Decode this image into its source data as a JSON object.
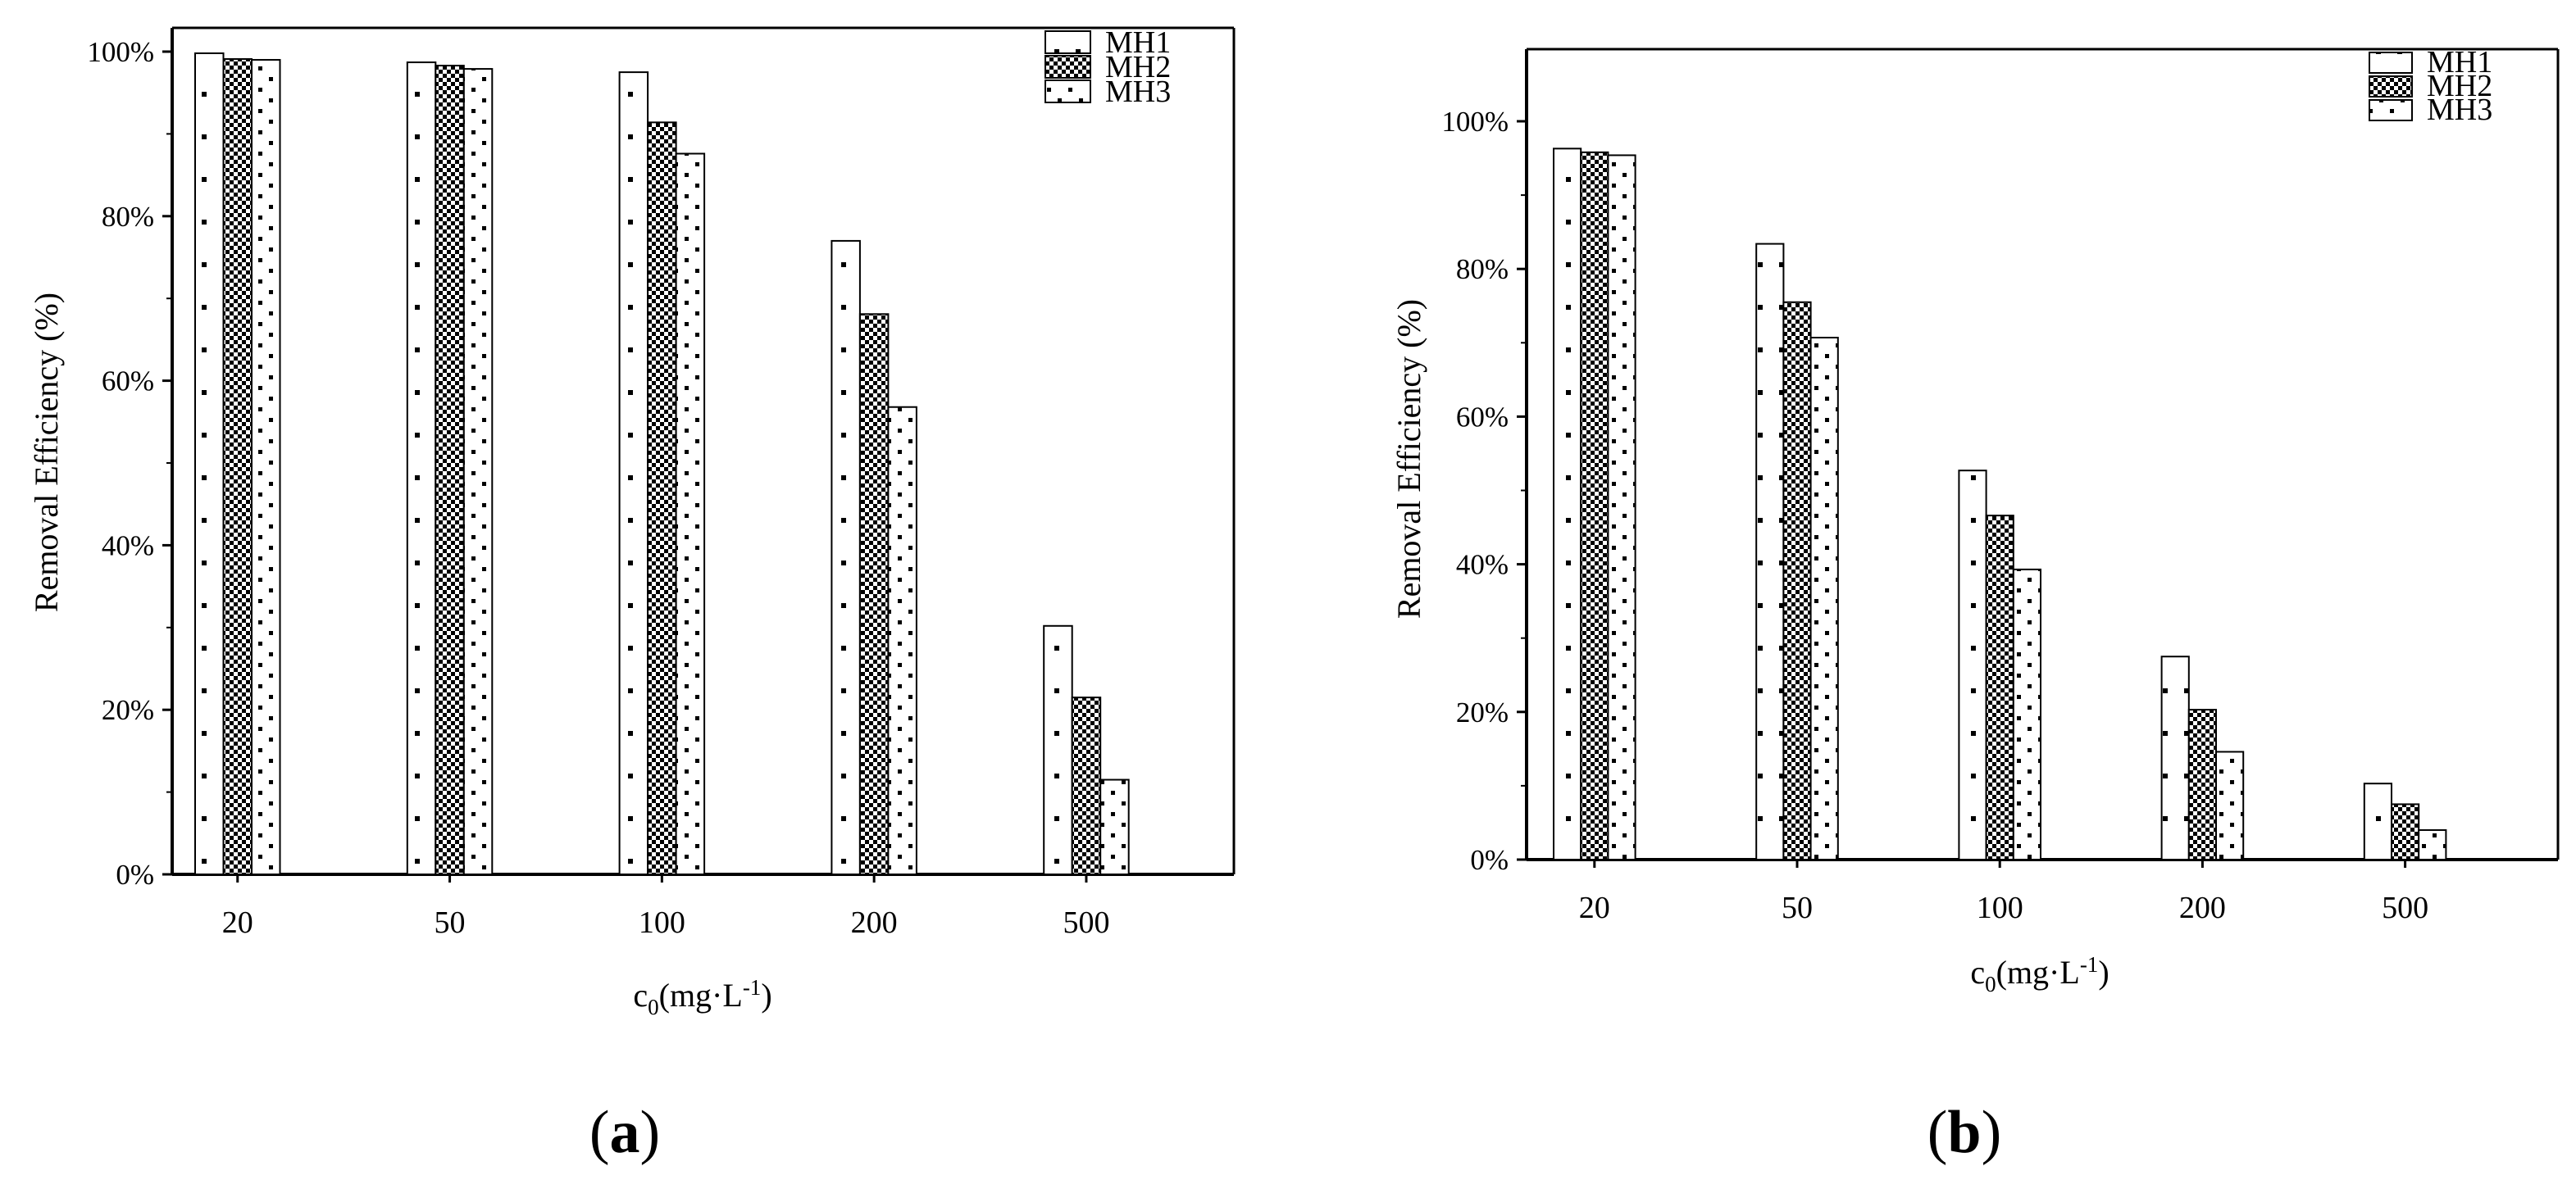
{
  "panels": [
    {
      "label_open": "(",
      "label_letter": "a",
      "label_close": ")"
    },
    {
      "label_open": "(",
      "label_letter": "b",
      "label_close": ")"
    }
  ],
  "colors": {
    "axis": "#000000",
    "bar_fill": "#ffffff",
    "pattern": "#000000"
  },
  "chart_data": [
    {
      "type": "bar",
      "panel": "a",
      "categories": [
        "20",
        "50",
        "100",
        "200",
        "500"
      ],
      "series": [
        {
          "name": "MH1",
          "pattern": "sparse-dots",
          "values": [
            99.8,
            98.7,
            97.5,
            77.0,
            30.2
          ]
        },
        {
          "name": "MH2",
          "pattern": "checker",
          "values": [
            99.1,
            98.3,
            91.4,
            68.1,
            21.5
          ]
        },
        {
          "name": "MH3",
          "pattern": "dots",
          "values": [
            99.0,
            97.9,
            87.6,
            56.8,
            11.5
          ]
        }
      ],
      "ylabel": "Removal Efficiency (%)",
      "xlabel_main": "c",
      "xlabel_sub": "0",
      "xlabel_unit": "(mg·L",
      "xlabel_sup": "-1",
      "xlabel_close": ")",
      "ylim": [
        0,
        100
      ],
      "ytick_values": [
        0,
        20,
        40,
        60,
        80,
        100
      ],
      "ytick_labels": [
        "0%",
        "20%",
        "40%",
        "60%",
        "80%",
        "100%"
      ],
      "legend": "top-right",
      "grid": false
    },
    {
      "type": "bar",
      "panel": "b",
      "categories": [
        "20",
        "50",
        "100",
        "200",
        "500"
      ],
      "series": [
        {
          "name": "MH1",
          "pattern": "sparse-dots",
          "values": [
            96.3,
            83.4,
            52.7,
            27.5,
            10.3
          ]
        },
        {
          "name": "MH2",
          "pattern": "checker",
          "values": [
            95.8,
            75.5,
            46.6,
            20.3,
            7.5
          ]
        },
        {
          "name": "MH3",
          "pattern": "dots",
          "values": [
            95.4,
            70.7,
            39.3,
            14.6,
            4.0
          ]
        }
      ],
      "ylabel": "Removal Efficiency (%)",
      "xlabel_main": "c",
      "xlabel_sub": "0",
      "xlabel_unit": "(mg·L",
      "xlabel_sup": "-1",
      "xlabel_close": ")",
      "ylim": [
        0,
        100
      ],
      "ytick_values": [
        0,
        20,
        40,
        60,
        80,
        100
      ],
      "ytick_labels": [
        "0%",
        "20%",
        "40%",
        "60%",
        "80%",
        "100%"
      ],
      "legend": "top-right",
      "grid": false
    }
  ]
}
